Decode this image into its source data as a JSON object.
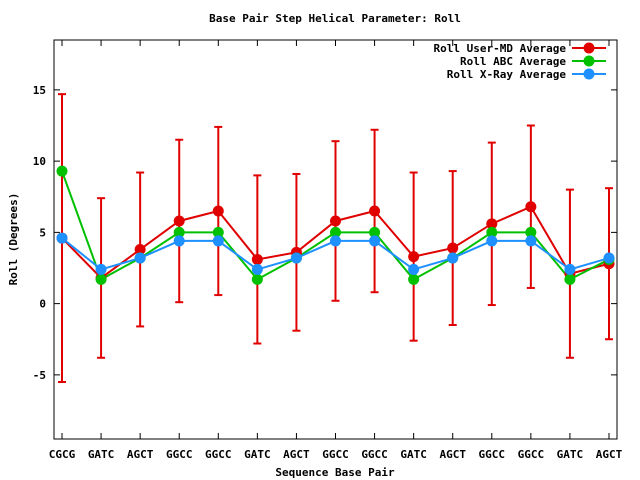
{
  "chart_data": {
    "type": "line",
    "title": "Base Pair Step Helical Parameter: Roll",
    "xlabel": "Sequence Base Pair",
    "ylabel": "Roll (Degrees)",
    "ylim": [
      -9.5,
      18.5
    ],
    "yticks": [
      -5,
      0,
      5,
      10,
      15
    ],
    "grid": false,
    "legend_position": "top-right",
    "categories": [
      "CGCG",
      "GATC",
      "AGCT",
      "GGCC",
      "GGCC",
      "GATC",
      "AGCT",
      "GGCC",
      "GGCC",
      "GATC",
      "AGCT",
      "GGCC",
      "GGCC",
      "GATC",
      "AGCT"
    ],
    "series": [
      {
        "name": "Roll User-MD Average",
        "color": "#e00000",
        "values": [
          4.6,
          1.8,
          3.8,
          5.8,
          6.5,
          3.1,
          3.6,
          5.8,
          6.5,
          3.3,
          3.9,
          5.6,
          6.8,
          2.1,
          2.8
        ],
        "error": [
          10.1,
          5.6,
          5.4,
          5.7,
          5.9,
          5.9,
          5.5,
          5.6,
          5.7,
          5.9,
          5.4,
          5.7,
          5.7,
          5.9,
          5.3
        ]
      },
      {
        "name": "Roll ABC Average",
        "color": "#00c000",
        "values": [
          9.3,
          1.7,
          3.2,
          5.0,
          5.0,
          1.7,
          3.2,
          5.0,
          5.0,
          1.7,
          3.2,
          5.0,
          5.0,
          1.7,
          3.1
        ]
      },
      {
        "name": "Roll X-Ray Average",
        "color": "#1e90ff",
        "values": [
          4.6,
          2.4,
          3.2,
          4.4,
          4.4,
          2.4,
          3.2,
          4.4,
          4.4,
          2.4,
          3.2,
          4.4,
          4.4,
          2.4,
          3.2
        ]
      }
    ]
  }
}
